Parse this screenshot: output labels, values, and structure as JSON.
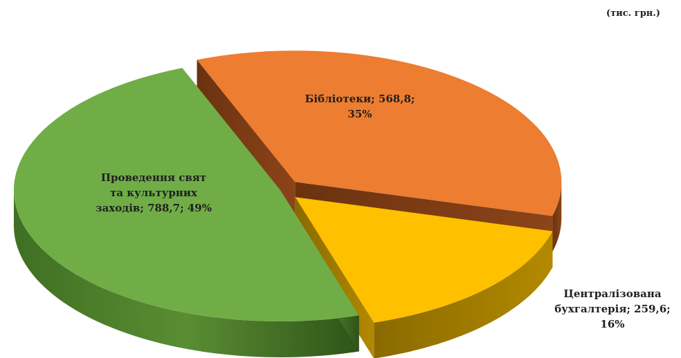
{
  "unit_note": "(тис. грн.)",
  "chart_data": {
    "type": "pie",
    "style": "3d-exploded",
    "title": "",
    "unit": "(тис. грн.)",
    "slices": [
      {
        "label": "Бібліотеки",
        "value": 568.8,
        "percent": 35,
        "color": "#ED7D31",
        "label_lines": [
          "Бібліотеки; 568,8;",
          "35%"
        ]
      },
      {
        "label": "Централізована бухгалтерія",
        "value": 259.6,
        "percent": 16,
        "color": "#FFC000",
        "label_lines": [
          "Централізована",
          "бухгалтерія; 259,6;",
          "16%"
        ]
      },
      {
        "label": "Проведення свят та культурних заходів",
        "value": 788.7,
        "percent": 49,
        "color": "#70AD47",
        "label_lines": [
          "Проведення свят",
          "та культурних",
          "заходів; 788,7; 49%"
        ]
      }
    ]
  }
}
